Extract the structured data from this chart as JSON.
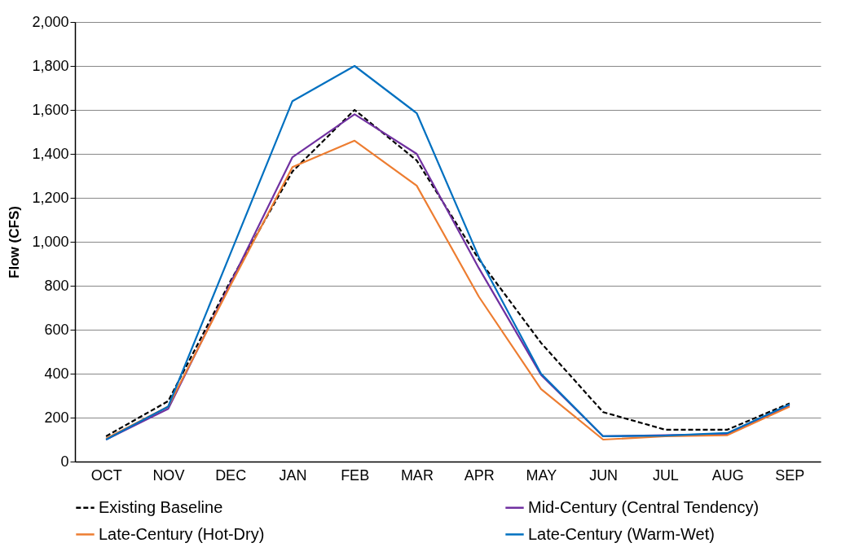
{
  "chart_data": {
    "type": "line",
    "ylabel": "Flow (CFS)",
    "categories": [
      "OCT",
      "NOV",
      "DEC",
      "JAN",
      "FEB",
      "MAR",
      "APR",
      "MAY",
      "JUN",
      "JUL",
      "AUG",
      "SEP"
    ],
    "series": [
      {
        "name": "Existing Baseline",
        "color": "#000000",
        "line_style": "dashed",
        "values": [
          115,
          275,
          820,
          1320,
          1600,
          1370,
          920,
          540,
          225,
          145,
          145,
          265
        ]
      },
      {
        "name": "Mid-Century (Central Tendency)",
        "color": "#7030a0",
        "line_style": "solid",
        "values": [
          100,
          240,
          810,
          1385,
          1580,
          1400,
          880,
          395,
          115,
          120,
          125,
          255
        ]
      },
      {
        "name": "Late-Century (Hot-Dry)",
        "color": "#ed7d31",
        "line_style": "solid",
        "values": [
          105,
          250,
          800,
          1340,
          1460,
          1255,
          750,
          330,
          100,
          115,
          120,
          250
        ]
      },
      {
        "name": "Late-Century (Warm-Wet)",
        "color": "#0070c0",
        "line_style": "solid",
        "values": [
          100,
          250,
          945,
          1640,
          1800,
          1585,
          930,
          400,
          115,
          118,
          130,
          260
        ]
      }
    ],
    "ylim": [
      0,
      2000
    ],
    "yticks": [
      0,
      200,
      400,
      600,
      800,
      {
        "value": 1000,
        "label": "1,000"
      },
      {
        "value": 1200,
        "label": "1,200"
      },
      {
        "value": 1400,
        "label": "1,400"
      },
      {
        "value": 1600,
        "label": "1,600"
      },
      {
        "value": 1800,
        "label": "1,800"
      },
      {
        "value": 2000,
        "label": "2,000"
      }
    ],
    "grid": "y",
    "legend": "bottom"
  }
}
